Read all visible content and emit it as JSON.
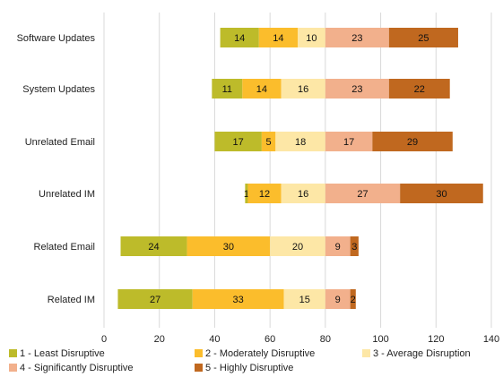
{
  "chart_data": {
    "type": "bar",
    "orientation": "horizontal",
    "stacked": true,
    "title": "",
    "xlabel": "",
    "ylabel": "",
    "xlim": [
      0,
      140
    ],
    "xticks": [
      0,
      20,
      40,
      60,
      80,
      100,
      120,
      140
    ],
    "grid": "vertical",
    "legend_position": "bottom",
    "categories": [
      "Software Updates",
      "System Updates",
      "Unrelated Email",
      "Unrelated IM",
      "Related Email",
      "Related IM"
    ],
    "offsets": [
      42,
      39,
      40,
      51,
      6,
      5
    ],
    "series": [
      {
        "name": "1 - Least Disruptive",
        "color": "#bdbb2a",
        "values": [
          14,
          11,
          17,
          1,
          24,
          27
        ]
      },
      {
        "name": "2 - Moderately Disruptive",
        "color": "#fbbd2c",
        "values": [
          14,
          14,
          5,
          12,
          30,
          33
        ]
      },
      {
        "name": "3 - Average Disruption",
        "color": "#fde7a6",
        "values": [
          10,
          16,
          18,
          16,
          20,
          15
        ]
      },
      {
        "name": "4 - Significantly Disruptive",
        "color": "#f2b08c",
        "values": [
          23,
          23,
          17,
          27,
          9,
          9
        ]
      },
      {
        "name": "5 - Highly Disruptive",
        "color": "#c0681f",
        "values": [
          25,
          22,
          29,
          30,
          3,
          2
        ]
      }
    ]
  }
}
